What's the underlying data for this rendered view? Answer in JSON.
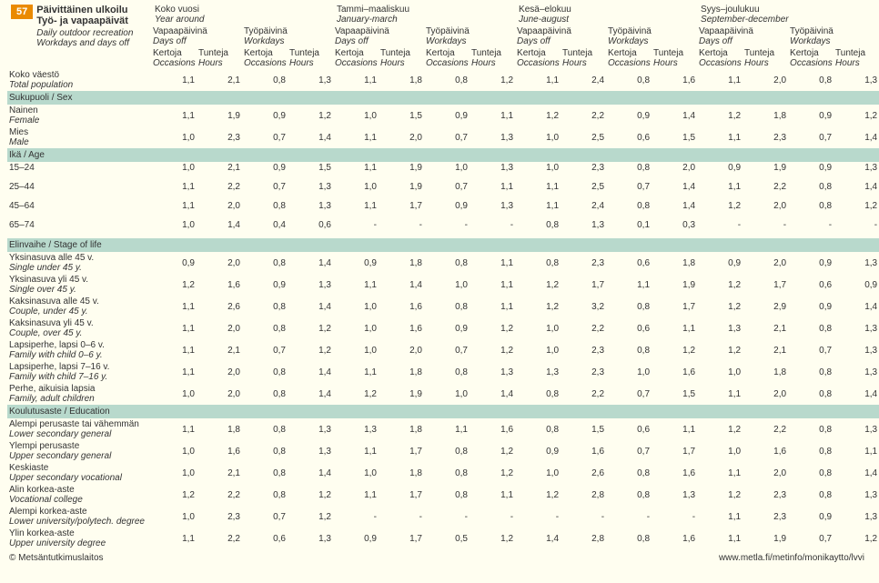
{
  "badge": "57",
  "title_fi": "Päivittäinen ulkoilu Työ- ja vapaapäivät",
  "title_en_1": "Daily outdoor recreation",
  "title_en_2": "Workdays and days off",
  "seasons": [
    {
      "fi": "Koko vuosi",
      "en": "Year around"
    },
    {
      "fi": "Tammi–maaliskuu",
      "en": "January-march"
    },
    {
      "fi": "Kesä–elokuu",
      "en": "June-august"
    },
    {
      "fi": "Syys–joulukuu",
      "en": "September-december"
    }
  ],
  "daytype": [
    {
      "fi": "Vapaapäivinä",
      "en": "Days off"
    },
    {
      "fi": "Työpäivinä",
      "en": "Workdays"
    }
  ],
  "metric": [
    {
      "fi": "Kertoja",
      "en": "Occasions"
    },
    {
      "fi": "Tunteja",
      "en": "Hours"
    }
  ],
  "sections": [
    {
      "header": null,
      "rows": [
        {
          "fi": "Koko väestö",
          "en": "Total population",
          "v": [
            "1,1",
            "2,1",
            "0,8",
            "1,3",
            "1,1",
            "1,8",
            "0,8",
            "1,2",
            "1,1",
            "2,4",
            "0,8",
            "1,6",
            "1,1",
            "2,0",
            "0,8",
            "1,3"
          ]
        }
      ]
    },
    {
      "header": "Sukupuoli / Sex",
      "rows": [
        {
          "fi": "Nainen",
          "en": "Female",
          "v": [
            "1,1",
            "1,9",
            "0,9",
            "1,2",
            "1,0",
            "1,5",
            "0,9",
            "1,1",
            "1,2",
            "2,2",
            "0,9",
            "1,4",
            "1,2",
            "1,8",
            "0,9",
            "1,2"
          ]
        },
        {
          "fi": "Mies",
          "en": "Male",
          "v": [
            "1,0",
            "2,3",
            "0,7",
            "1,4",
            "1,1",
            "2,0",
            "0,7",
            "1,3",
            "1,0",
            "2,5",
            "0,6",
            "1,5",
            "1,1",
            "2,3",
            "0,7",
            "1,4"
          ]
        }
      ]
    },
    {
      "header": "Ikä / Age",
      "rows": [
        {
          "fi": "15–24",
          "en": "",
          "v": [
            "1,0",
            "2,1",
            "0,9",
            "1,5",
            "1,1",
            "1,9",
            "1,0",
            "1,3",
            "1,0",
            "2,3",
            "0,8",
            "2,0",
            "0,9",
            "1,9",
            "0,9",
            "1,3"
          ],
          "gap": true
        },
        {
          "fi": "25–44",
          "en": "",
          "v": [
            "1,1",
            "2,2",
            "0,7",
            "1,3",
            "1,0",
            "1,9",
            "0,7",
            "1,1",
            "1,1",
            "2,5",
            "0,7",
            "1,4",
            "1,1",
            "2,2",
            "0,8",
            "1,4"
          ],
          "gap": true
        },
        {
          "fi": "45–64",
          "en": "",
          "v": [
            "1,1",
            "2,0",
            "0,8",
            "1,3",
            "1,1",
            "1,7",
            "0,9",
            "1,3",
            "1,1",
            "2,4",
            "0,8",
            "1,4",
            "1,2",
            "2,0",
            "0,8",
            "1,2"
          ],
          "gap": true
        },
        {
          "fi": "65–74",
          "en": "",
          "v": [
            "1,0",
            "1,4",
            "0,4",
            "0,6",
            "-",
            "-",
            "-",
            "-",
            "0,8",
            "1,3",
            "0,1",
            "0,3",
            "-",
            "-",
            "-",
            "-"
          ],
          "gap": true
        }
      ]
    },
    {
      "header": "Elinvaihe / Stage of life",
      "rows": [
        {
          "fi": "Yksinasuva alle 45 v.",
          "en": "Single under 45 y.",
          "v": [
            "0,9",
            "2,0",
            "0,8",
            "1,4",
            "0,9",
            "1,8",
            "0,8",
            "1,1",
            "0,8",
            "2,3",
            "0,6",
            "1,8",
            "0,9",
            "2,0",
            "0,9",
            "1,3"
          ]
        },
        {
          "fi": "Yksinasuva yli 45 v.",
          "en": "Single over 45 y.",
          "v": [
            "1,2",
            "1,6",
            "0,9",
            "1,3",
            "1,1",
            "1,4",
            "1,0",
            "1,1",
            "1,2",
            "1,7",
            "1,1",
            "1,9",
            "1,2",
            "1,7",
            "0,6",
            "0,9"
          ]
        },
        {
          "fi": "Kaksinasuva alle 45 v.",
          "en": "Couple, under 45 y.",
          "v": [
            "1,1",
            "2,6",
            "0,8",
            "1,4",
            "1,0",
            "1,6",
            "0,8",
            "1,1",
            "1,2",
            "3,2",
            "0,8",
            "1,7",
            "1,2",
            "2,9",
            "0,9",
            "1,4"
          ]
        },
        {
          "fi": "Kaksinasuva yli 45 v.",
          "en": "Couple, over 45 y.",
          "v": [
            "1,1",
            "2,0",
            "0,8",
            "1,2",
            "1,0",
            "1,6",
            "0,9",
            "1,2",
            "1,0",
            "2,2",
            "0,6",
            "1,1",
            "1,3",
            "2,1",
            "0,8",
            "1,3"
          ]
        },
        {
          "fi": "Lapsiperhe, lapsi 0–6 v.",
          "en": "Family with child 0–6 y.",
          "v": [
            "1,1",
            "2,1",
            "0,7",
            "1,2",
            "1,0",
            "2,0",
            "0,7",
            "1,2",
            "1,0",
            "2,3",
            "0,8",
            "1,2",
            "1,2",
            "2,1",
            "0,7",
            "1,3"
          ]
        },
        {
          "fi": "Lapsiperhe, lapsi 7–16 v.",
          "en": "Family with child 7–16 y.",
          "v": [
            "1,1",
            "2,0",
            "0,8",
            "1,4",
            "1,1",
            "1,8",
            "0,8",
            "1,3",
            "1,3",
            "2,3",
            "1,0",
            "1,6",
            "1,0",
            "1,8",
            "0,8",
            "1,3"
          ]
        },
        {
          "fi": "Perhe, aikuisia lapsia",
          "en": "Family, adult children",
          "v": [
            "1,0",
            "2,0",
            "0,8",
            "1,4",
            "1,2",
            "1,9",
            "1,0",
            "1,4",
            "0,8",
            "2,2",
            "0,7",
            "1,5",
            "1,1",
            "2,0",
            "0,8",
            "1,4"
          ]
        }
      ]
    },
    {
      "header": "Koulutusaste / Education",
      "rows": [
        {
          "fi": "Alempi perusaste tai vähemmän",
          "en": "Lower secondary general",
          "v": [
            "1,1",
            "1,8",
            "0,8",
            "1,3",
            "1,3",
            "1,8",
            "1,1",
            "1,6",
            "0,8",
            "1,5",
            "0,6",
            "1,1",
            "1,2",
            "2,2",
            "0,8",
            "1,3"
          ]
        },
        {
          "fi": "Ylempi perusaste",
          "en": "Upper secondary general",
          "v": [
            "1,0",
            "1,6",
            "0,8",
            "1,3",
            "1,1",
            "1,7",
            "0,8",
            "1,2",
            "0,9",
            "1,6",
            "0,7",
            "1,7",
            "1,0",
            "1,6",
            "0,8",
            "1,1"
          ]
        },
        {
          "fi": "Keskiaste",
          "en": "Upper secondary vocational",
          "v": [
            "1,0",
            "2,1",
            "0,8",
            "1,4",
            "1,0",
            "1,8",
            "0,8",
            "1,2",
            "1,0",
            "2,6",
            "0,8",
            "1,6",
            "1,1",
            "2,0",
            "0,8",
            "1,4"
          ]
        },
        {
          "fi": "Alin korkea-aste",
          "en": "Vocational college",
          "v": [
            "1,2",
            "2,2",
            "0,8",
            "1,2",
            "1,1",
            "1,7",
            "0,8",
            "1,1",
            "1,2",
            "2,8",
            "0,8",
            "1,3",
            "1,2",
            "2,3",
            "0,8",
            "1,3"
          ]
        },
        {
          "fi": "Alempi korkea-aste",
          "en": "Lower university/polytech. degree",
          "v": [
            "1,0",
            "2,3",
            "0,7",
            "1,2",
            "-",
            "-",
            "-",
            "-",
            "-",
            "-",
            "-",
            "-",
            "1,1",
            "2,3",
            "0,9",
            "1,3"
          ]
        },
        {
          "fi": "Ylin korkea-aste",
          "en": "Upper university degree",
          "v": [
            "1,1",
            "2,2",
            "0,6",
            "1,3",
            "0,9",
            "1,7",
            "0,5",
            "1,2",
            "1,4",
            "2,8",
            "0,8",
            "1,6",
            "1,1",
            "1,9",
            "0,7",
            "1,2"
          ]
        }
      ]
    }
  ],
  "footer_left": "© Metsäntutkimuslaitos",
  "footer_right": "www.metla.fi/metinfo/monikaytto/lvvi"
}
